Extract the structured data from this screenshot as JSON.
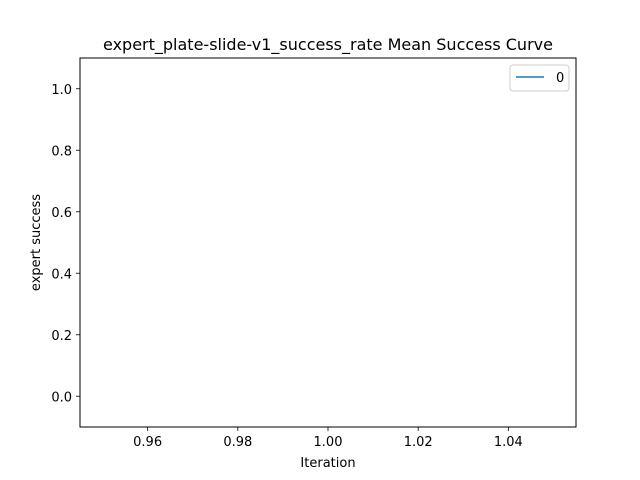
{
  "chart_data": {
    "type": "line",
    "title": "expert_plate-slide-v1_success_rate Mean Success Curve",
    "xlabel": "Iteration",
    "ylabel": "expert success",
    "xlim": [
      0.945,
      1.055
    ],
    "ylim": [
      -0.1,
      1.1
    ],
    "xticks": [
      0.96,
      0.98,
      1.0,
      1.02,
      1.04
    ],
    "xtick_labels": [
      "0.96",
      "0.98",
      "1.00",
      "1.02",
      "1.04"
    ],
    "yticks": [
      0.0,
      0.2,
      0.4,
      0.6,
      0.8,
      1.0
    ],
    "ytick_labels": [
      "0.0",
      "0.2",
      "0.4",
      "0.6",
      "0.8",
      "1.0"
    ],
    "grid": false,
    "legend_position": "top-right",
    "series": [
      {
        "name": "0",
        "color": "#1f77b4",
        "x": [],
        "y": []
      }
    ]
  }
}
